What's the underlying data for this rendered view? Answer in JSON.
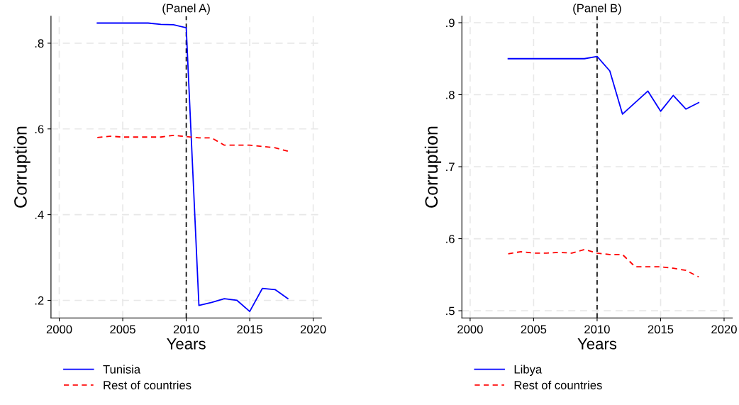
{
  "chart_data": [
    {
      "type": "line",
      "title": "(Panel A)",
      "xlabel": "Years",
      "ylabel": "Corruption",
      "x": [
        2003,
        2004,
        2005,
        2006,
        2007,
        2008,
        2009,
        2010,
        2011,
        2012,
        2013,
        2014,
        2015,
        2016,
        2017,
        2018
      ],
      "series": [
        {
          "name": "Tunisia",
          "color": "#0000ff",
          "line_style": "solid",
          "values": [
            0.847,
            0.847,
            0.847,
            0.847,
            0.847,
            0.844,
            0.843,
            0.836,
            0.188,
            0.195,
            0.204,
            0.2,
            0.174,
            0.228,
            0.225,
            0.204
          ]
        },
        {
          "name": "Rest of countries",
          "color": "#ff0000",
          "line_style": "dashed",
          "values": [
            0.58,
            0.583,
            0.581,
            0.581,
            0.581,
            0.581,
            0.585,
            0.582,
            0.579,
            0.579,
            0.562,
            0.562,
            0.562,
            0.559,
            0.556,
            0.548
          ]
        }
      ],
      "xlim": [
        1999.35,
        2020.65
      ],
      "xticks": [
        2000,
        2005,
        2010,
        2015,
        2020
      ],
      "ylim": [
        0.159,
        0.863
      ],
      "yticks": [
        {
          "value": 0.2,
          "label": ".2"
        },
        {
          "value": 0.4,
          "label": ".4"
        },
        {
          "value": 0.6,
          "label": ".6"
        },
        {
          "value": 0.8,
          "label": ".8"
        }
      ],
      "ref_lines": [
        {
          "axis": "x",
          "value": 2010,
          "color": "#000000",
          "line_style": "dashed"
        }
      ],
      "grid": true,
      "legend": "bottom"
    },
    {
      "type": "line",
      "title": "(Panel B)",
      "xlabel": "Years",
      "ylabel": "Corruption",
      "x": [
        2003,
        2004,
        2005,
        2006,
        2007,
        2008,
        2009,
        2010,
        2011,
        2012,
        2013,
        2014,
        2015,
        2016,
        2017,
        2018
      ],
      "series": [
        {
          "name": "Libya",
          "color": "#0000ff",
          "line_style": "solid",
          "values": [
            0.85,
            0.85,
            0.85,
            0.85,
            0.85,
            0.85,
            0.85,
            0.853,
            0.833,
            0.773,
            0.789,
            0.805,
            0.777,
            0.799,
            0.78,
            0.789
          ]
        },
        {
          "name": "Rest of countries",
          "color": "#ff0000",
          "line_style": "dashed",
          "values": [
            0.579,
            0.582,
            0.58,
            0.58,
            0.581,
            0.58,
            0.585,
            0.58,
            0.578,
            0.578,
            0.561,
            0.561,
            0.561,
            0.559,
            0.556,
            0.547
          ]
        }
      ],
      "xlim": [
        1999.35,
        2020.65
      ],
      "xticks": [
        2000,
        2005,
        2010,
        2015,
        2020
      ],
      "ylim": [
        0.49,
        0.909
      ],
      "yticks": [
        {
          "value": 0.5,
          "label": ".5"
        },
        {
          "value": 0.6,
          "label": ".6"
        },
        {
          "value": 0.7,
          "label": ".7"
        },
        {
          "value": 0.8,
          "label": ".8"
        },
        {
          "value": 0.9,
          "label": ".9"
        }
      ],
      "ref_lines": [
        {
          "axis": "x",
          "value": 2010,
          "color": "#000000",
          "line_style": "dashed"
        }
      ],
      "grid": true,
      "legend": "bottom"
    }
  ]
}
